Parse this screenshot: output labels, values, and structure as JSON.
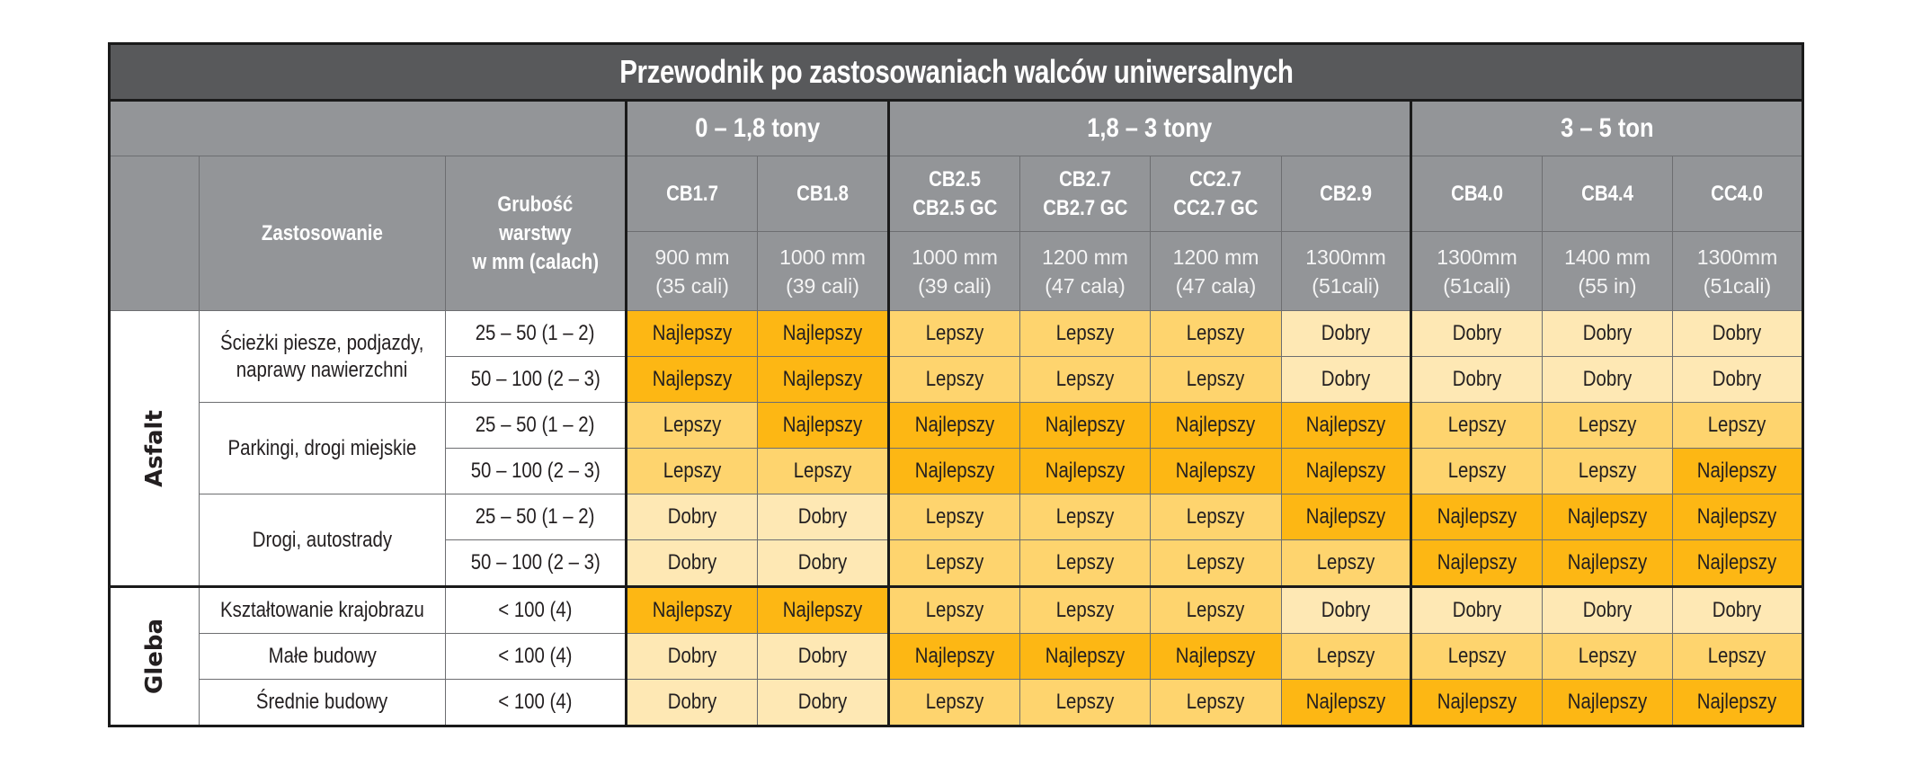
{
  "title": "Przewodnik po zastosowaniach walców uniwersalnych",
  "header": {
    "application_label": "Zastosowanie",
    "thickness_label_lines": [
      "Grubość",
      "warstwy",
      "w mm (calach)"
    ],
    "weight_bands": [
      {
        "label": "0 – 1,8 tony",
        "span": 2
      },
      {
        "label": "1,8 – 3 tony",
        "span": 4
      },
      {
        "label": "3 – 5 ton",
        "span": 3
      }
    ],
    "models": [
      {
        "name_lines": [
          "CB1.7"
        ],
        "width_lines": [
          "900 mm",
          "(35 cali)"
        ]
      },
      {
        "name_lines": [
          "CB1.8"
        ],
        "width_lines": [
          "1000 mm",
          "(39 cali)"
        ]
      },
      {
        "name_lines": [
          "CB2.5",
          "CB2.5 GC"
        ],
        "width_lines": [
          "1000 mm",
          "(39 cali)"
        ]
      },
      {
        "name_lines": [
          "CB2.7",
          "CB2.7 GC"
        ],
        "width_lines": [
          "1200 mm",
          "(47 cala)"
        ]
      },
      {
        "name_lines": [
          "CC2.7",
          "CC2.7 GC"
        ],
        "width_lines": [
          "1200 mm",
          "(47 cala)"
        ]
      },
      {
        "name_lines": [
          "CB2.9"
        ],
        "width_lines": [
          "1300mm",
          "(51cali)"
        ]
      },
      {
        "name_lines": [
          "CB4.0"
        ],
        "width_lines": [
          "1300mm",
          "(51cali)"
        ]
      },
      {
        "name_lines": [
          "CB4.4"
        ],
        "width_lines": [
          "1400 mm",
          "(55 in)"
        ]
      },
      {
        "name_lines": [
          "CC4.0"
        ],
        "width_lines": [
          "1300mm",
          "(51cali)"
        ]
      }
    ]
  },
  "rating_colors": {
    "Najlepszy": "#fdb714",
    "Lepszy": "#fed46e",
    "Dobry": "#fee8b4"
  },
  "categories": [
    {
      "label": "Asfalt",
      "applications": [
        {
          "label_lines": [
            "Ścieżki piesze, podjazdy,",
            "naprawy nawierzchni"
          ],
          "rows": [
            {
              "thickness": "25 – 50 (1 – 2)",
              "ratings": [
                "Najlepszy",
                "Najlepszy",
                "Lepszy",
                "Lepszy",
                "Lepszy",
                "Dobry",
                "Dobry",
                "Dobry",
                "Dobry"
              ]
            },
            {
              "thickness": "50 – 100 (2 – 3)",
              "ratings": [
                "Najlepszy",
                "Najlepszy",
                "Lepszy",
                "Lepszy",
                "Lepszy",
                "Dobry",
                "Dobry",
                "Dobry",
                "Dobry"
              ]
            }
          ]
        },
        {
          "label_lines": [
            "Parkingi, drogi miejskie"
          ],
          "rows": [
            {
              "thickness": "25 – 50 (1 – 2)",
              "ratings": [
                "Lepszy",
                "Najlepszy",
                "Najlepszy",
                "Najlepszy",
                "Najlepszy",
                "Najlepszy",
                "Lepszy",
                "Lepszy",
                "Lepszy"
              ]
            },
            {
              "thickness": "50 – 100 (2 – 3)",
              "ratings": [
                "Lepszy",
                "Lepszy",
                "Najlepszy",
                "Najlepszy",
                "Najlepszy",
                "Najlepszy",
                "Lepszy",
                "Lepszy",
                "Najlepszy"
              ]
            }
          ]
        },
        {
          "label_lines": [
            "Drogi, autostrady"
          ],
          "rows": [
            {
              "thickness": "25 – 50 (1 – 2)",
              "ratings": [
                "Dobry",
                "Dobry",
                "Lepszy",
                "Lepszy",
                "Lepszy",
                "Najlepszy",
                "Najlepszy",
                "Najlepszy",
                "Najlepszy"
              ]
            },
            {
              "thickness": "50 – 100 (2 – 3)",
              "ratings": [
                "Dobry",
                "Dobry",
                "Lepszy",
                "Lepszy",
                "Lepszy",
                "Lepszy",
                "Najlepszy",
                "Najlepszy",
                "Najlepszy"
              ]
            }
          ]
        }
      ]
    },
    {
      "label": "Gleba",
      "applications": [
        {
          "label_lines": [
            "Kształtowanie krajobrazu"
          ],
          "rows": [
            {
              "thickness": "< 100 (4)",
              "ratings": [
                "Najlepszy",
                "Najlepszy",
                "Lepszy",
                "Lepszy",
                "Lepszy",
                "Dobry",
                "Dobry",
                "Dobry",
                "Dobry"
              ]
            }
          ]
        },
        {
          "label_lines": [
            "Małe budowy"
          ],
          "rows": [
            {
              "thickness": "< 100 (4)",
              "ratings": [
                "Dobry",
                "Dobry",
                "Najlepszy",
                "Najlepszy",
                "Najlepszy",
                "Lepszy",
                "Lepszy",
                "Lepszy",
                "Lepszy"
              ]
            }
          ]
        },
        {
          "label_lines": [
            "Średnie budowy"
          ],
          "rows": [
            {
              "thickness": "< 100 (4)",
              "ratings": [
                "Dobry",
                "Dobry",
                "Lepszy",
                "Lepszy",
                "Lepszy",
                "Najlepszy",
                "Najlepszy",
                "Najlepszy",
                "Najlepszy"
              ]
            }
          ]
        }
      ]
    }
  ]
}
